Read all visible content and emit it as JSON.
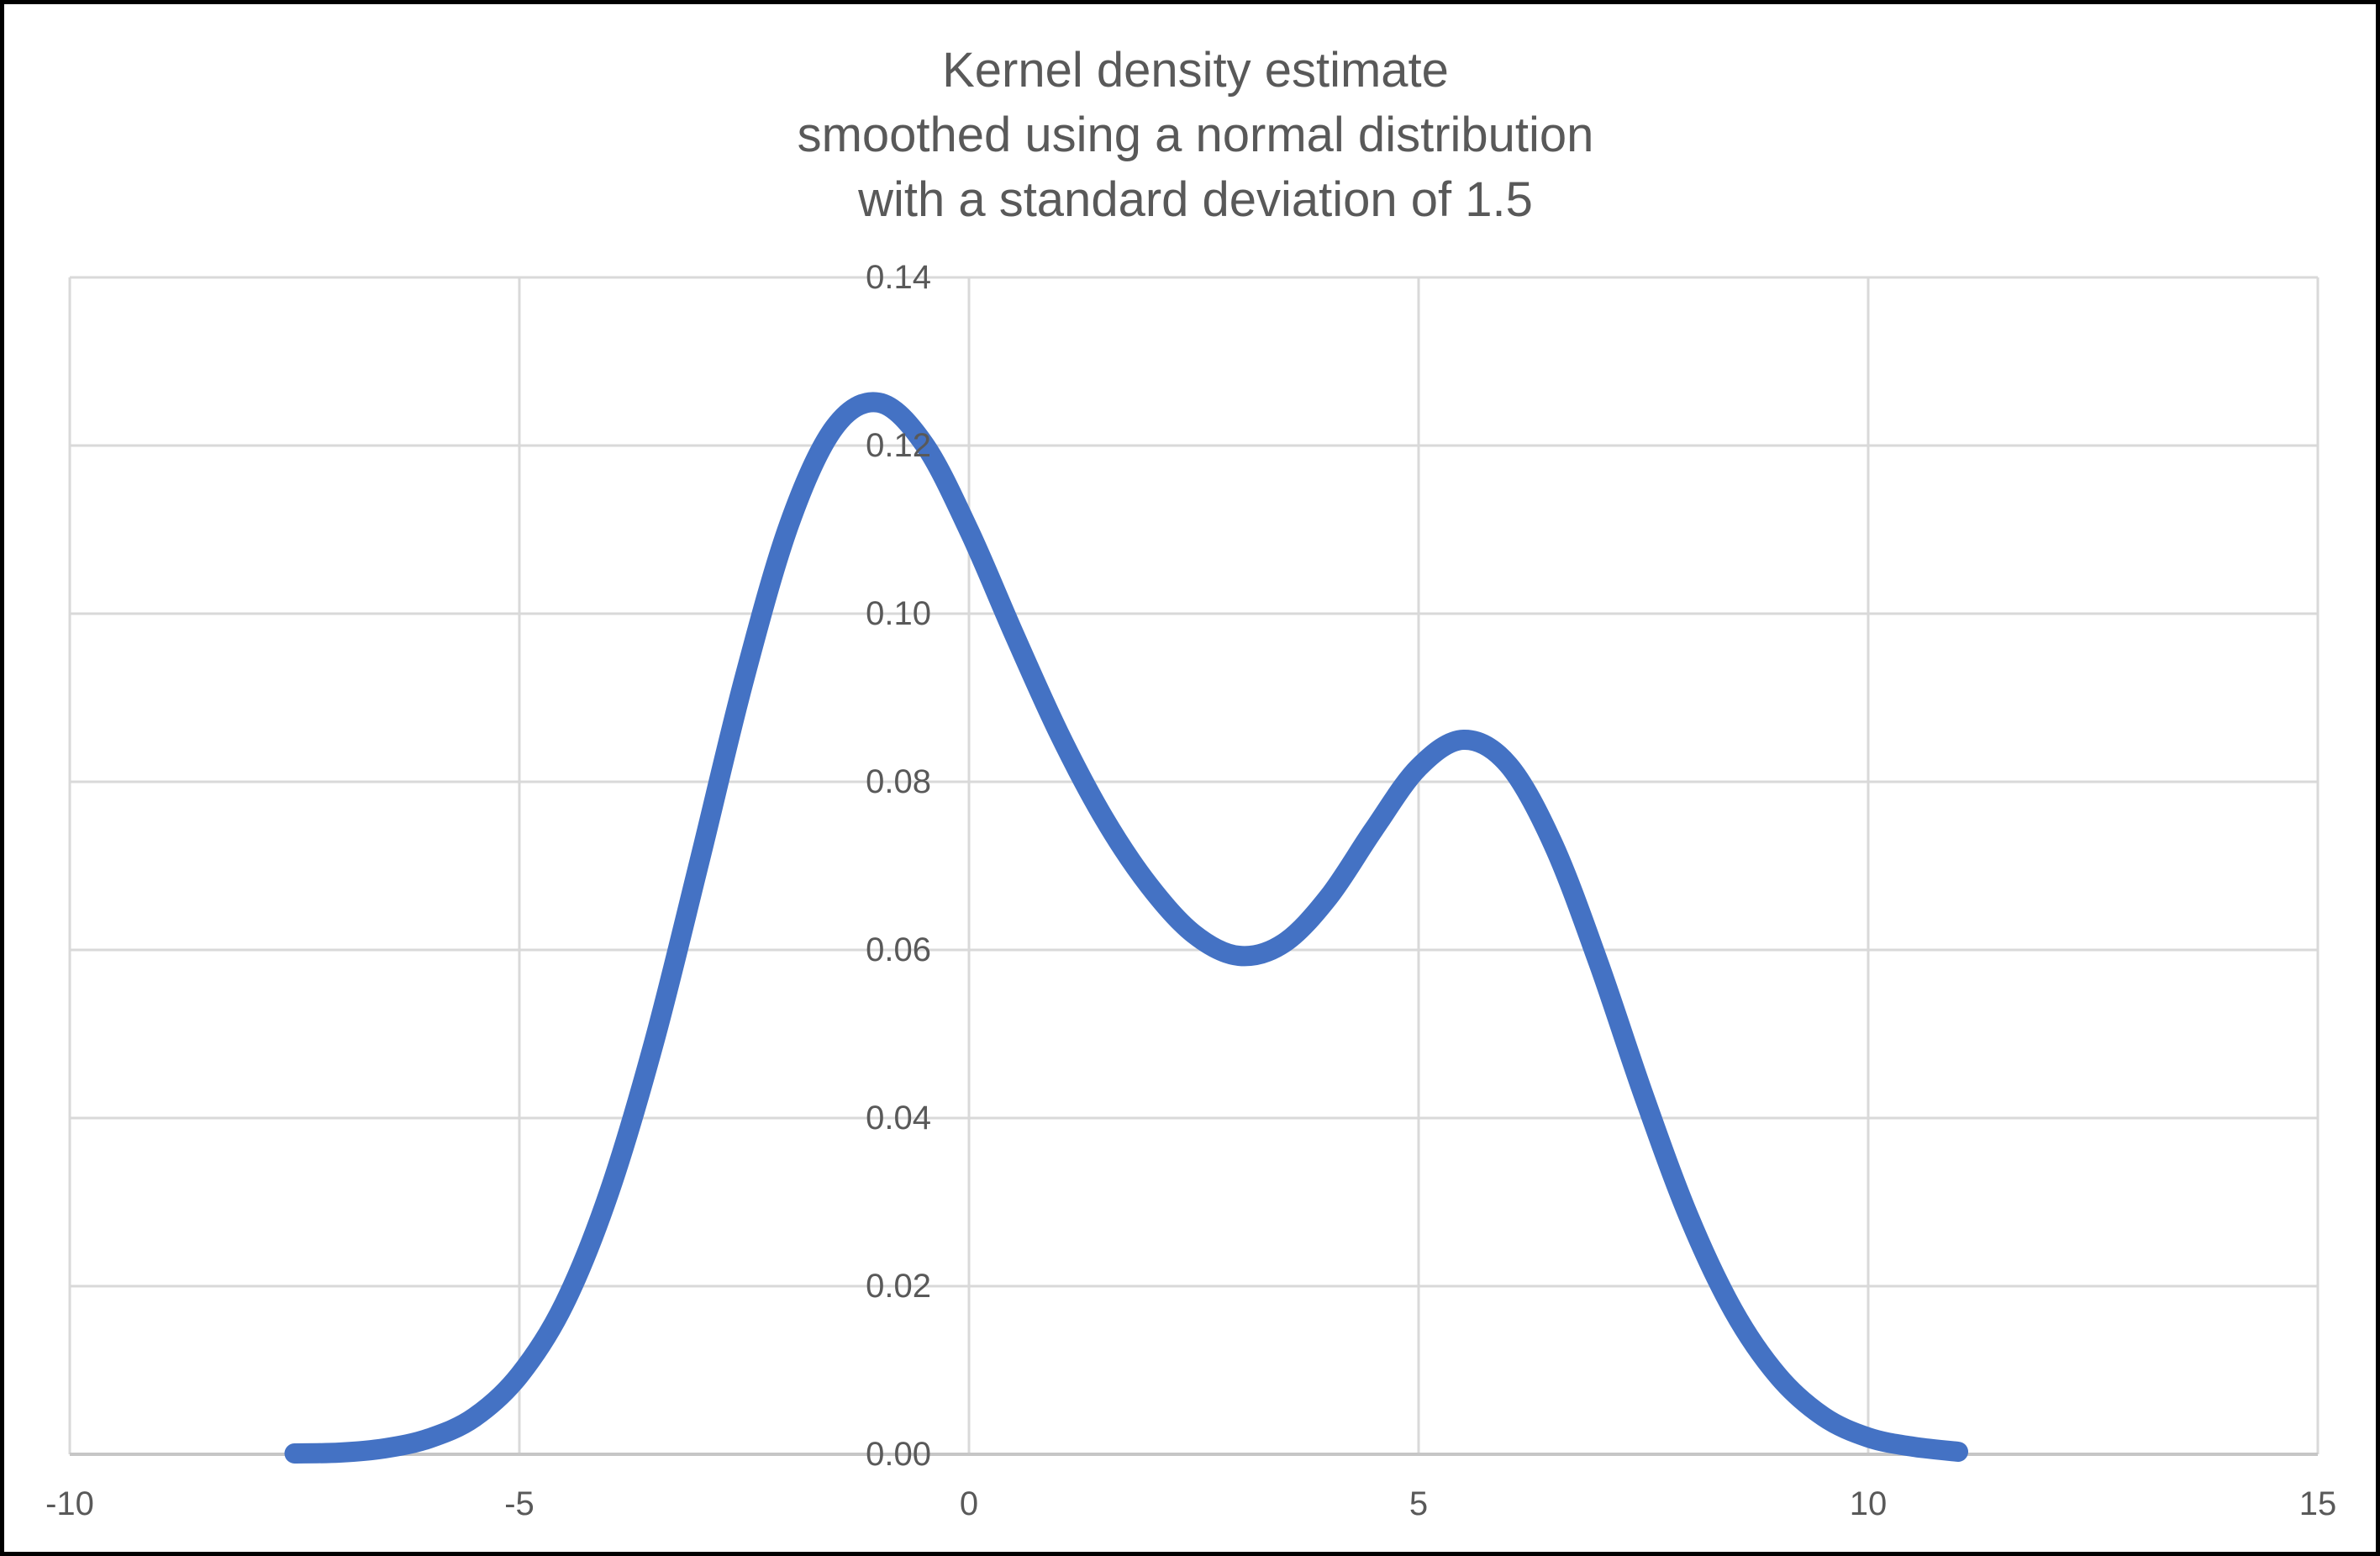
{
  "chart_data": {
    "type": "line",
    "title": "Kernel density estimate\nsmoothed using a normal distribution\nwith a standard deviation of 1.5",
    "xlabel": "",
    "ylabel": "",
    "xlim": [
      -10,
      15
    ],
    "ylim": [
      0,
      0.14
    ],
    "xticks": [
      -10,
      -5,
      0,
      5,
      10,
      15
    ],
    "xtick_labels": [
      "-10",
      "-5",
      "0",
      "5",
      "10",
      "15"
    ],
    "ytick_values": [
      0,
      0.02,
      0.04,
      0.06,
      0.08,
      0.1,
      0.12,
      0.14
    ],
    "ytick_labels": [
      "0.00",
      "0.02",
      "0.04",
      "0.06",
      "0.08",
      "0.10",
      "0.12",
      "0.14"
    ],
    "grid": true,
    "legend": "none",
    "series": [
      {
        "name": "kernel density estimate",
        "color": "#4472C4",
        "line_width": 24,
        "x": [
          -7.5,
          -7,
          -6.5,
          -6,
          -5.5,
          -5,
          -4.5,
          -4,
          -3.5,
          -3,
          -2.5,
          -2,
          -1.5,
          -1,
          -0.5,
          0,
          0.5,
          1,
          1.5,
          2,
          2.5,
          3,
          3.5,
          4,
          4.5,
          5,
          5.5,
          6,
          6.5,
          7,
          7.5,
          8,
          8.5,
          9,
          9.5,
          10,
          10.5,
          11
        ],
        "y": [
          0.0001,
          0.0002,
          0.0007,
          0.0019,
          0.0044,
          0.0094,
          0.0179,
          0.0312,
          0.0491,
          0.0704,
          0.0922,
          0.1106,
          0.1221,
          0.1251,
          0.1202,
          0.1099,
          0.0976,
          0.0858,
          0.0757,
          0.0677,
          0.0619,
          0.0593,
          0.0608,
          0.0663,
          0.0743,
          0.0817,
          0.085,
          0.082,
          0.0725,
          0.0585,
          0.0428,
          0.0284,
          0.0171,
          0.0093,
          0.0045,
          0.002,
          0.0009,
          0.0003
        ]
      }
    ]
  },
  "styles": {
    "background": "#FFFFFF",
    "frame_border": "#000000",
    "gridline": "#D9D9D9",
    "axis_line": "#C6C6C6",
    "title_text": "#595959",
    "tick_text": "#595959"
  }
}
